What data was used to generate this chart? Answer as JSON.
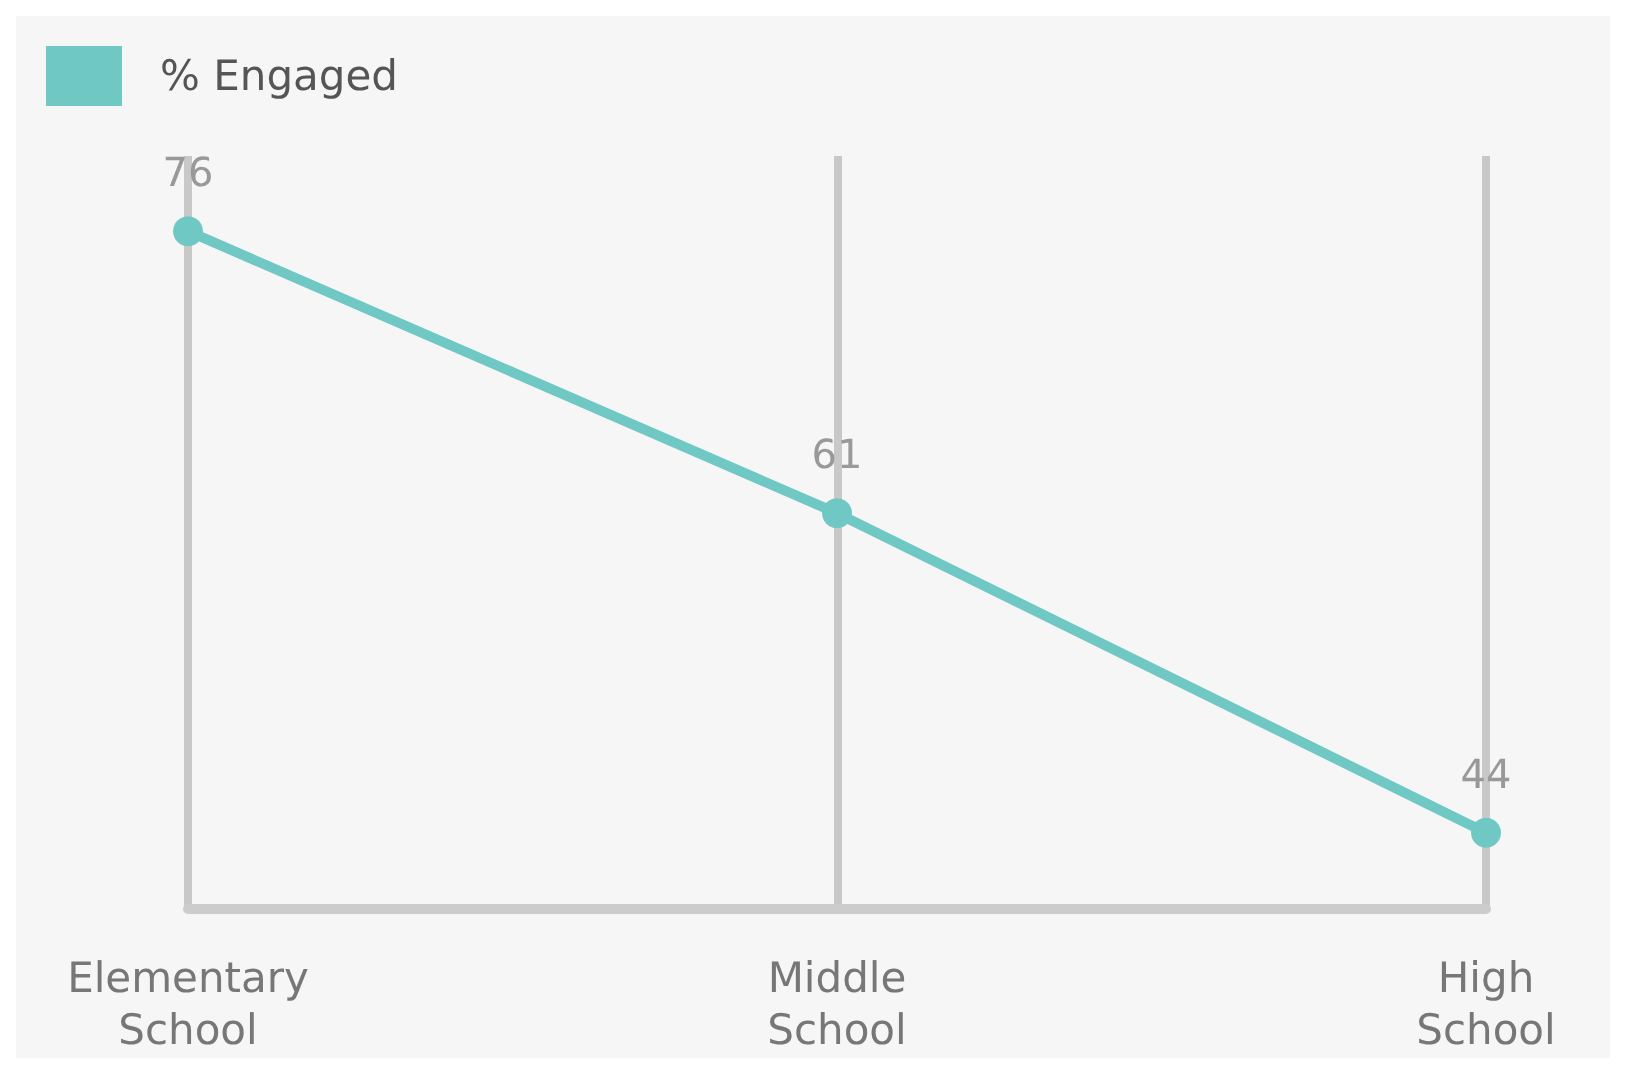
{
  "chart_data": {
    "type": "line",
    "categories": [
      "Elementary School",
      "Middle School",
      "High School"
    ],
    "series": [
      {
        "name": "% Engaged",
        "color": "#70c8c4",
        "values": [
          76,
          61,
          44
        ]
      }
    ],
    "data_labels": true,
    "grid": "x",
    "legend": "top left",
    "marker": "circle",
    "line_style": "solid"
  }
}
